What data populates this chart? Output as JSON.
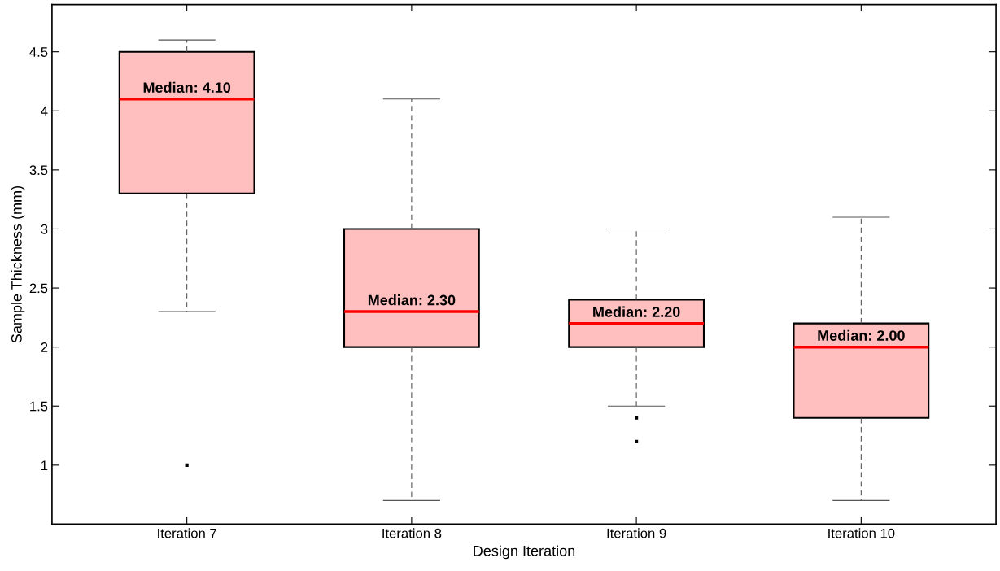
{
  "chart_data": {
    "type": "box",
    "xlabel": "Design Iteration",
    "ylabel": "Sample Thickness (mm)",
    "categories": [
      "Iteration 7",
      "Iteration 8",
      "Iteration 9",
      "Iteration 10"
    ],
    "series": [
      {
        "color": "#ffbfbf",
        "boxes": [
          {
            "low": 2.3,
            "q1": 3.3,
            "median": 4.1,
            "q3": 4.5,
            "high": 4.6,
            "outliers": [
              1.0
            ]
          },
          {
            "low": 0.7,
            "q1": 2.0,
            "median": 2.3,
            "q3": 3.0,
            "high": 4.1
          },
          {
            "low": 1.5,
            "q1": 2.0,
            "median": 2.2,
            "q3": 2.4,
            "high": 3.0,
            "outliers": [
              1.4,
              1.2
            ]
          },
          {
            "low": 0.7,
            "q1": 1.4,
            "median": 2.0,
            "q3": 2.2,
            "high": 3.1
          }
        ]
      }
    ],
    "ylim": [
      0.5,
      4.9
    ],
    "yticks": [
      1,
      1.5,
      2,
      2.5,
      3,
      3.5,
      4,
      4.5
    ],
    "annotations": [
      {
        "text": "Median: 4.10",
        "x": "Iteration 7",
        "y": 4.1
      },
      {
        "text": "Median: 2.30",
        "x": "Iteration 8",
        "y": 2.3
      },
      {
        "text": "Median: 2.20",
        "x": "Iteration 9",
        "y": 2.2
      },
      {
        "text": "Median: 2.00",
        "x": "Iteration 10",
        "y": 2.0
      }
    ],
    "grid": false,
    "legend": false
  }
}
